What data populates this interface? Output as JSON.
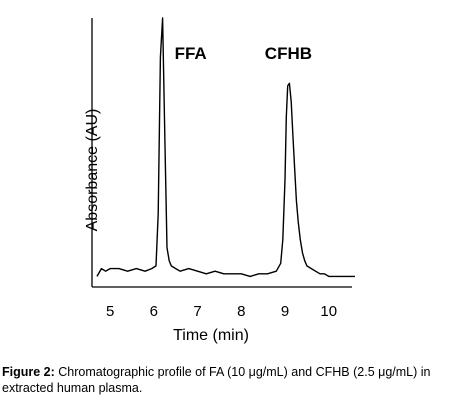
{
  "chart_data": {
    "type": "line",
    "title": "",
    "xlabel": "Time (min)",
    "ylabel": "Absorbance (AU)",
    "xlim": [
      4.7,
      10.6
    ],
    "ylim": [
      0,
      1.0
    ],
    "x_ticks": [
      5,
      6,
      7,
      8,
      9,
      10
    ],
    "x_tick_labels": [
      "5",
      "6",
      "7",
      "8",
      "9",
      "10"
    ],
    "y_ticks_visible": false,
    "grid": false,
    "legend": "none",
    "annotations": [
      {
        "text": "FFA",
        "x": 6.2
      },
      {
        "text": "CFHB",
        "x": 9.1
      }
    ],
    "series": [
      {
        "color": "#000000",
        "x": [
          4.7,
          4.8,
          4.9,
          5.0,
          5.2,
          5.4,
          5.6,
          5.8,
          5.95,
          6.05,
          6.1,
          6.15,
          6.2,
          6.25,
          6.3,
          6.35,
          6.4,
          6.5,
          6.6,
          6.8,
          7.0,
          7.2,
          7.4,
          7.6,
          7.8,
          8.0,
          8.2,
          8.4,
          8.6,
          8.8,
          8.9,
          8.95,
          9.0,
          9.03,
          9.06,
          9.1,
          9.14,
          9.18,
          9.22,
          9.26,
          9.3,
          9.35,
          9.4,
          9.45,
          9.5,
          9.6,
          9.7,
          9.8,
          9.9,
          10.0,
          10.2,
          10.4,
          10.6
        ],
        "y": [
          0.01,
          0.04,
          0.03,
          0.04,
          0.04,
          0.03,
          0.04,
          0.03,
          0.04,
          0.05,
          0.25,
          0.85,
          1.0,
          0.55,
          0.12,
          0.07,
          0.05,
          0.04,
          0.03,
          0.04,
          0.03,
          0.02,
          0.03,
          0.02,
          0.02,
          0.02,
          0.01,
          0.02,
          0.02,
          0.03,
          0.06,
          0.15,
          0.38,
          0.62,
          0.74,
          0.75,
          0.68,
          0.55,
          0.42,
          0.3,
          0.22,
          0.15,
          0.1,
          0.07,
          0.05,
          0.04,
          0.03,
          0.02,
          0.02,
          0.01,
          0.01,
          0.01,
          0.01
        ]
      }
    ]
  },
  "caption": {
    "label": "Figure 2:",
    "text": " Chromatographic profile of FA (10 μg/mL) and CFHB (2.5 μg/mL) in extracted human plasma."
  }
}
